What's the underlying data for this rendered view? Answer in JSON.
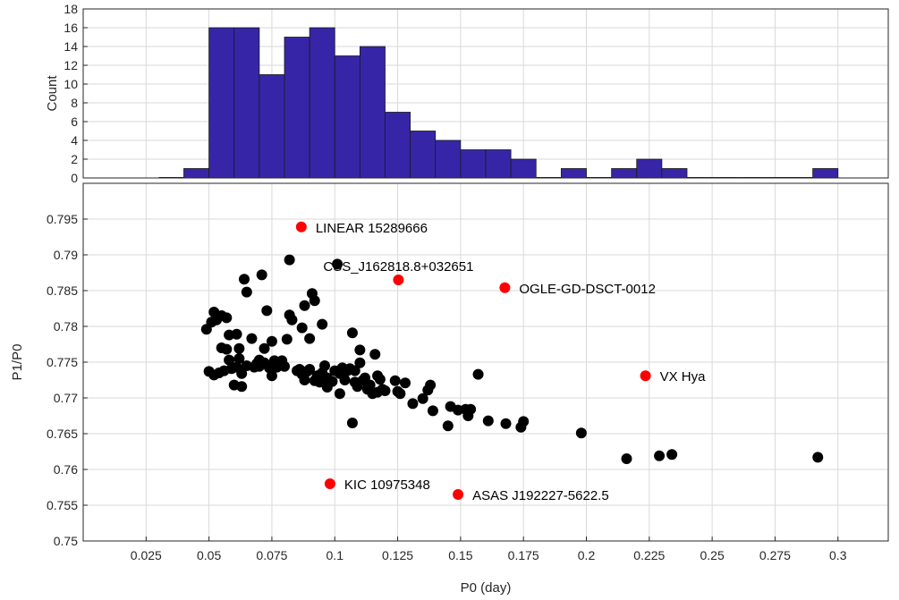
{
  "chart_data": [
    {
      "type": "bar",
      "panel": "histogram",
      "ylabel": "Count",
      "xlim": [
        0.0,
        0.32
      ],
      "ylim": [
        0,
        18
      ],
      "yticks": [
        0,
        2,
        4,
        6,
        8,
        10,
        12,
        14,
        16,
        18
      ],
      "grid": true,
      "bar_color": "#3626a7",
      "bin_width": 0.01,
      "bin_starts": [
        0.03,
        0.04,
        0.05,
        0.06,
        0.07,
        0.08,
        0.09,
        0.1,
        0.11,
        0.12,
        0.13,
        0.14,
        0.15,
        0.16,
        0.17,
        0.18,
        0.19,
        0.2,
        0.21,
        0.22,
        0.23,
        0.24,
        0.25,
        0.26,
        0.27,
        0.28,
        0.29
      ],
      "counts": [
        0,
        1,
        16,
        16,
        11,
        15,
        16,
        13,
        14,
        7,
        5,
        4,
        3,
        3,
        2,
        0,
        1,
        0,
        1,
        2,
        1,
        0,
        0,
        0,
        0,
        0,
        1
      ]
    },
    {
      "type": "scatter",
      "panel": "scatter",
      "xlabel": "P0 (day)",
      "ylabel": "P1/P0",
      "xlim": [
        0.0,
        0.32
      ],
      "ylim": [
        0.75,
        0.8
      ],
      "xticks": [
        0.025,
        0.05,
        0.075,
        0.1,
        0.125,
        0.15,
        0.175,
        0.2,
        0.225,
        0.25,
        0.275,
        0.3
      ],
      "xtick_labels": [
        "0.025",
        "0.05",
        "0.075",
        "0.1",
        "0.125",
        "0.15",
        "0.175",
        "0.2",
        "0.225",
        "0.25",
        "0.275",
        "0.3"
      ],
      "yticks": [
        0.75,
        0.755,
        0.76,
        0.765,
        0.77,
        0.775,
        0.78,
        0.785,
        0.79,
        0.795
      ],
      "ytick_labels": [
        "0.75",
        "0.755",
        "0.76",
        "0.765",
        "0.77",
        "0.775",
        "0.78",
        "0.785",
        "0.79",
        "0.795"
      ],
      "grid": true,
      "series": [
        {
          "color": "#000000",
          "points": [
            [
              0.049,
              0.7796
            ],
            [
              0.05,
              0.7737
            ],
            [
              0.051,
              0.7806
            ],
            [
              0.052,
              0.782
            ],
            [
              0.052,
              0.7732
            ],
            [
              0.053,
              0.7809
            ],
            [
              0.054,
              0.7735
            ],
            [
              0.055,
              0.777
            ],
            [
              0.055,
              0.7815
            ],
            [
              0.056,
              0.7738
            ],
            [
              0.057,
              0.7812
            ],
            [
              0.057,
              0.7768
            ],
            [
              0.058,
              0.7753
            ],
            [
              0.058,
              0.7788
            ],
            [
              0.059,
              0.7741
            ],
            [
              0.06,
              0.7718
            ],
            [
              0.061,
              0.7789
            ],
            [
              0.061,
              0.7743
            ],
            [
              0.062,
              0.7769
            ],
            [
              0.062,
              0.7755
            ],
            [
              0.063,
              0.7716
            ],
            [
              0.063,
              0.7734
            ],
            [
              0.064,
              0.7866
            ],
            [
              0.065,
              0.7745
            ],
            [
              0.065,
              0.7848
            ],
            [
              0.067,
              0.7783
            ],
            [
              0.068,
              0.7743
            ],
            [
              0.069,
              0.7748
            ],
            [
              0.07,
              0.7753
            ],
            [
              0.07,
              0.7744
            ],
            [
              0.071,
              0.7872
            ],
            [
              0.072,
              0.7749
            ],
            [
              0.072,
              0.7769
            ],
            [
              0.073,
              0.7822
            ],
            [
              0.074,
              0.7742
            ],
            [
              0.075,
              0.7779
            ],
            [
              0.075,
              0.7731
            ],
            [
              0.076,
              0.7752
            ],
            [
              0.077,
              0.7743
            ],
            [
              0.078,
              0.7749
            ],
            [
              0.079,
              0.7752
            ],
            [
              0.08,
              0.7744
            ],
            [
              0.081,
              0.7782
            ],
            [
              0.082,
              0.7893
            ],
            [
              0.082,
              0.7816
            ],
            [
              0.083,
              0.7809
            ],
            [
              0.085,
              0.7738
            ],
            [
              0.086,
              0.774
            ],
            [
              0.087,
              0.7798
            ],
            [
              0.087,
              0.7733
            ],
            [
              0.088,
              0.7829
            ],
            [
              0.088,
              0.7725
            ],
            [
              0.089,
              0.7737
            ],
            [
              0.09,
              0.7783
            ],
            [
              0.09,
              0.774
            ],
            [
              0.091,
              0.7846
            ],
            [
              0.092,
              0.7836
            ],
            [
              0.092,
              0.7724
            ],
            [
              0.093,
              0.7731
            ],
            [
              0.094,
              0.7722
            ],
            [
              0.095,
              0.7803
            ],
            [
              0.095,
              0.7735
            ],
            [
              0.096,
              0.7745
            ],
            [
              0.097,
              0.7728
            ],
            [
              0.097,
              0.7715
            ],
            [
              0.099,
              0.7723
            ],
            [
              0.1,
              0.7738
            ],
            [
              0.101,
              0.7887
            ],
            [
              0.102,
              0.7734
            ],
            [
              0.102,
              0.7706
            ],
            [
              0.103,
              0.7742
            ],
            [
              0.104,
              0.7725
            ],
            [
              0.105,
              0.7738
            ],
            [
              0.106,
              0.7741
            ],
            [
              0.107,
              0.7791
            ],
            [
              0.107,
              0.7665
            ],
            [
              0.108,
              0.7722
            ],
            [
              0.108,
              0.7738
            ],
            [
              0.109,
              0.7716
            ],
            [
              0.11,
              0.7767
            ],
            [
              0.11,
              0.7749
            ],
            [
              0.111,
              0.7724
            ],
            [
              0.112,
              0.7728
            ],
            [
              0.113,
              0.7712
            ],
            [
              0.114,
              0.7718
            ],
            [
              0.115,
              0.7706
            ],
            [
              0.116,
              0.7761
            ],
            [
              0.117,
              0.7731
            ],
            [
              0.117,
              0.7708
            ],
            [
              0.118,
              0.7726
            ],
            [
              0.119,
              0.7712
            ],
            [
              0.12,
              0.771
            ],
            [
              0.124,
              0.7724
            ],
            [
              0.125,
              0.7709
            ],
            [
              0.126,
              0.7706
            ],
            [
              0.128,
              0.7721
            ],
            [
              0.131,
              0.7692
            ],
            [
              0.135,
              0.7699
            ],
            [
              0.137,
              0.7711
            ],
            [
              0.138,
              0.7718
            ],
            [
              0.139,
              0.7682
            ],
            [
              0.145,
              0.7661
            ],
            [
              0.146,
              0.7688
            ],
            [
              0.149,
              0.7683
            ],
            [
              0.152,
              0.7684
            ],
            [
              0.153,
              0.7675
            ],
            [
              0.154,
              0.7684
            ],
            [
              0.157,
              0.7733
            ],
            [
              0.161,
              0.7668
            ],
            [
              0.168,
              0.7664
            ],
            [
              0.174,
              0.7659
            ],
            [
              0.175,
              0.7667
            ],
            [
              0.198,
              0.7651
            ],
            [
              0.216,
              0.7615
            ],
            [
              0.229,
              0.7619
            ],
            [
              0.234,
              0.7621
            ],
            [
              0.292,
              0.7617
            ]
          ]
        },
        {
          "color": "#ff0000",
          "points": [
            [
              0.0867,
              0.7939
            ],
            [
              0.1253,
              0.7865
            ],
            [
              0.1676,
              0.7854
            ],
            [
              0.2235,
              0.7731
            ],
            [
              0.0981,
              0.758
            ],
            [
              0.149,
              0.7565
            ]
          ]
        }
      ],
      "annotations": [
        {
          "text": "LINEAR 15289666",
          "x": 0.0867,
          "y": 0.7939
        },
        {
          "text": "CSS_J162818.8+032651",
          "x": 0.1253,
          "y": 0.7865
        },
        {
          "text": "OGLE-GD-DSCT-0012",
          "x": 0.1676,
          "y": 0.7854
        },
        {
          "text": "VX Hya",
          "x": 0.2235,
          "y": 0.7731
        },
        {
          "text": "KIC 10975348",
          "x": 0.0981,
          "y": 0.758
        },
        {
          "text": "ASAS J192227-5622.5",
          "x": 0.149,
          "y": 0.7565
        }
      ]
    }
  ]
}
